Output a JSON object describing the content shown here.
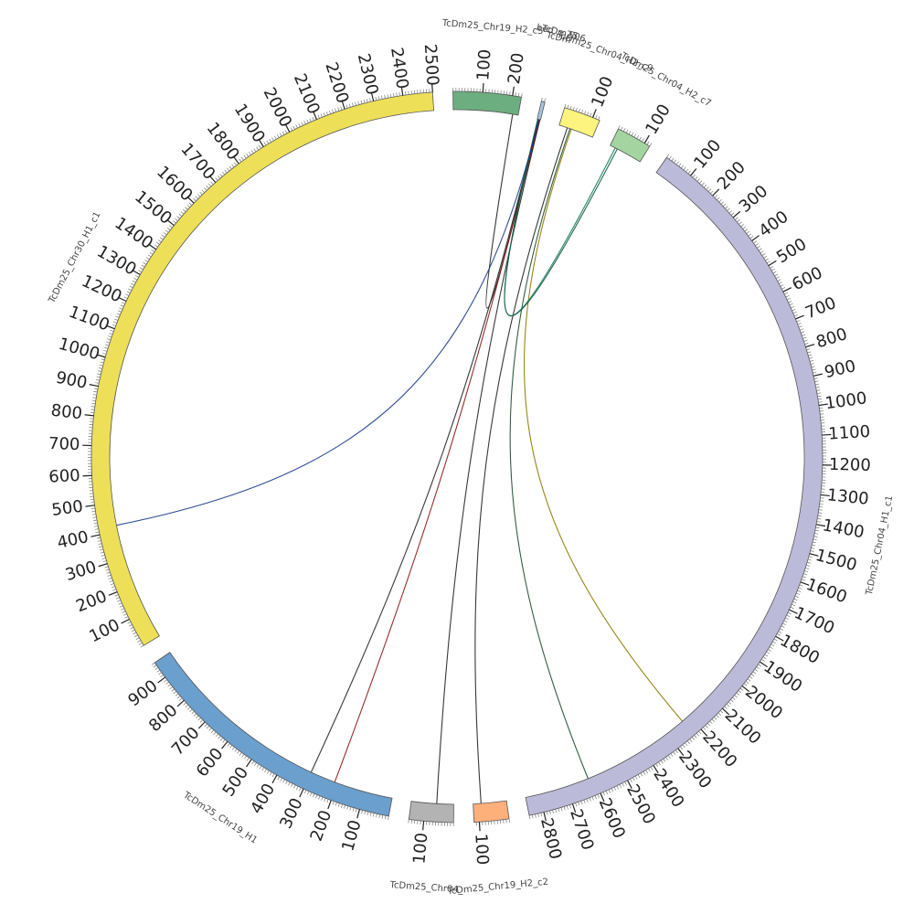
{
  "chart_data": {
    "type": "circos",
    "title": "",
    "contigs": [
      {
        "id": "chr04_h1",
        "name": "TcDm25_Chr04_H1_c1",
        "length": 2850,
        "color": "#bcbad9",
        "label_every": 100
      },
      {
        "id": "chr19_h2_c2",
        "name": "TcDm25_Chr19_H2_c2",
        "length": 118,
        "color": "#fdb07a",
        "label_every": 100
      },
      {
        "id": "chr04_c",
        "name": "TcDm25_Chr04_",
        "length": 150,
        "color": "#b3b3b3",
        "label_every": 100
      },
      {
        "id": "chr19_h1",
        "name": "TcDm25_Chr19_H1",
        "length": 960,
        "color": "#6b9fcd",
        "label_every": 100
      },
      {
        "id": "chr30_h1",
        "name": "TcDm25_Chr30_H1_c1",
        "length": 2500,
        "color": "#ede058",
        "label_every": 100
      },
      {
        "id": "chr19_h2_c5",
        "name": "TcDm25_Chr19_H2_c5",
        "length": 230,
        "color": "#6dae80",
        "label_every": 100
      },
      {
        "id": "small_a",
        "name": "TcDm",
        "length": 12,
        "color": "#a6c5e0",
        "label_every": 0
      },
      {
        "id": "chr04_h2_c9",
        "name": "TcDm25_Chr04_H2_c9",
        "length": 125,
        "color": "#fdf47f",
        "label_every": 100
      },
      {
        "id": "chr04_h2_c7",
        "name": "TcDm25_Chr04_H2_c7",
        "length": 120,
        "color": "#a4d5a0",
        "label_every": 100
      }
    ],
    "overlapping_labels": [
      "bed",
      "TcDm25",
      "_S06"
    ],
    "links": [
      {
        "a": "chr19_h2_c5",
        "a_pos": 210,
        "b": "small_a",
        "b_pos": 6,
        "color": "#222222"
      },
      {
        "a": "small_a",
        "a_pos": 4,
        "b": "chr19_h1",
        "b_pos": 300,
        "color": "#222222"
      },
      {
        "a": "small_a",
        "a_pos": 8,
        "b": "chr19_h1",
        "b_pos": 210,
        "color": "#8b1a1a"
      },
      {
        "a": "small_a",
        "a_pos": 10,
        "b": "chr04_c",
        "b_pos": 60,
        "color": "#222222"
      },
      {
        "a": "chr04_h2_c9",
        "a_pos": 30,
        "b": "chr19_h2_c2",
        "b_pos": 90,
        "color": "#222222"
      },
      {
        "a": "chr04_h2_c9",
        "a_pos": 40,
        "b": "chr04_h1",
        "b_pos": 2620,
        "color": "#1f4d2b"
      },
      {
        "a": "chr04_h2_c9",
        "a_pos": 45,
        "b": "chr04_h1",
        "b_pos": 2230,
        "color": "#8a7a00"
      },
      {
        "a": "chr04_h2_c7",
        "a_pos": 20,
        "b": "small_a",
        "b_pos": 3,
        "color": "#117a55"
      },
      {
        "a": "chr04_h2_c7",
        "a_pos": 28,
        "b": "small_a",
        "b_pos": 2,
        "color": "#0e5a42"
      },
      {
        "a": "chr30_h1",
        "a_pos": 420,
        "b": "small_a",
        "b_pos": 5,
        "color": "#1a3a8a"
      }
    ]
  }
}
